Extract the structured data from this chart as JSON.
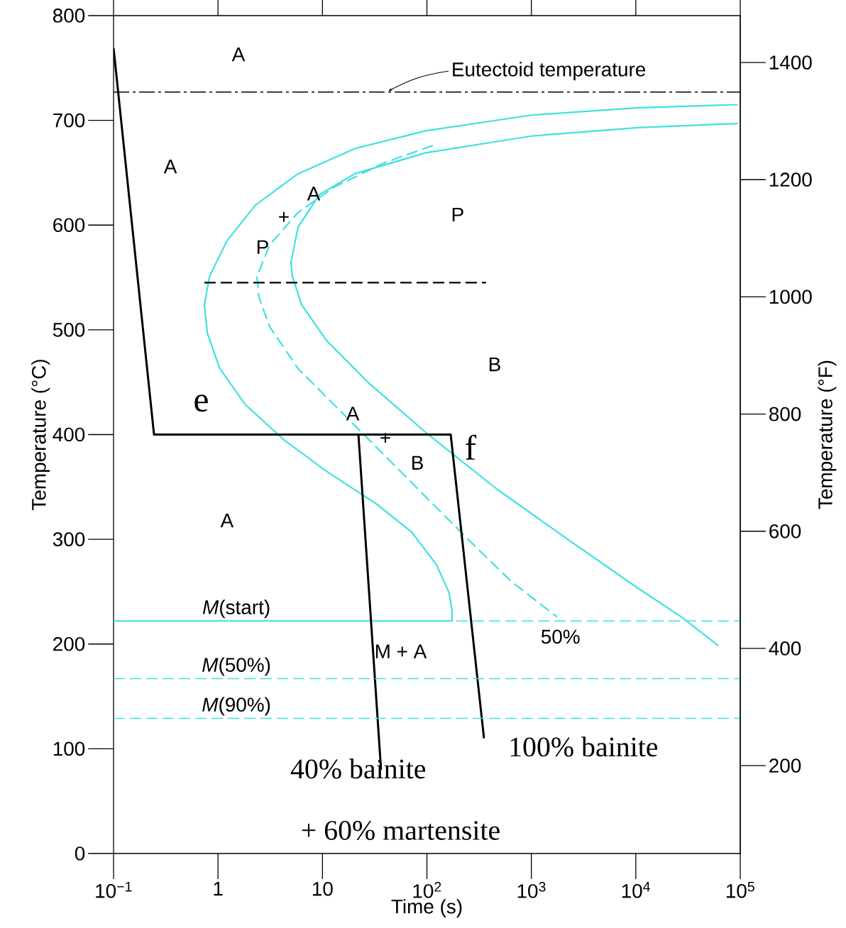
{
  "chart_data": {
    "type": "line",
    "xlabel": "Time (s)",
    "ylabel": "Temperature (°C)",
    "y2label": "Temperature (°F)",
    "log": "x",
    "xlim": [
      0.1,
      100000
    ],
    "xticks": [
      {
        "value": 0.1,
        "label": "10$^{−1}$"
      },
      1,
      10,
      {
        "value": 100,
        "label": "10$^{2}$"
      },
      {
        "value": 1000,
        "label": "10$^{3}$"
      },
      {
        "value": 10000,
        "label": "10$^{4}$"
      },
      {
        "value": 100000,
        "label": "10$^{5}$"
      }
    ],
    "ylim": [
      0,
      800
    ],
    "yticks": [
      0,
      100,
      200,
      300,
      400,
      500,
      600,
      700,
      800
    ],
    "y2lim": [
      50,
      1480
    ],
    "y2ticks": [
      200,
      400,
      600,
      800,
      1000,
      1200,
      1400
    ],
    "series": [
      {
        "color": "#40e0e0",
        "line_style": "solid",
        "x": [
          95000,
          10600,
          1000,
          97.5,
          20.4,
          5.84,
          2.28,
          1.22,
          0.83,
          0.74,
          0.79,
          1.04,
          1.81,
          4.27,
          10.9,
          32.6,
          71.3,
          123,
          163,
          174,
          174,
          0.1
        ],
        "values": [
          715,
          712,
          705,
          690,
          673,
          649,
          619,
          585,
          551,
          524,
          497,
          463,
          429,
          395,
          365,
          334,
          307,
          276,
          249,
          232,
          222,
          222
        ]
      },
      {
        "color": "#40e0e0",
        "line_style": "solid",
        "x": [
          95000,
          10600,
          1000,
          97.5,
          20.4,
          9.33,
          5.84,
          4.99,
          5.15,
          6.31,
          10.9,
          27.9,
          97.5,
          466,
          2228,
          10600,
          27200,
          50900
        ],
        "values": [
          697,
          693,
          685,
          669,
          649,
          629,
          598,
          564,
          551,
          524,
          490,
          449,
          402,
          348,
          300,
          253,
          226,
          205
        ]
      },
      {
        "color": "#40e0e0",
        "line_style": "dashed",
        "x": [
          50900,
          64300
        ],
        "values": [
          205,
          197
        ]
      },
      {
        "color": "#40e0e0",
        "line_style": "dashed",
        "x": [
          114,
          38.2,
          12.8,
          5.84,
          3.12,
          2.36,
          2.47,
          3.12,
          5.84,
          12.8,
          27.9,
          61,
          133,
          292,
          637,
          1191,
          1762
        ],
        "values": [
          676,
          659,
          636,
          612,
          581,
          551,
          531,
          503,
          463,
          429,
          395,
          361,
          327,
          293,
          260,
          239,
          226
        ]
      },
      {
        "color": "#000000",
        "line_style": "dashed",
        "x": [
          0.74,
          368
        ],
        "values": [
          545,
          545
        ]
      },
      {
        "color": "#000000",
        "line_style": "solid",
        "x": [
          0.1,
          0.244,
          169,
          352
        ],
        "values": [
          769,
          400,
          400,
          110
        ]
      },
      {
        "color": "#000000",
        "line_style": "solid",
        "x": [
          22.1,
          36.4
        ],
        "values": [
          400,
          80
        ]
      }
    ],
    "ref_lines": [
      {
        "axis": "y",
        "value": 727,
        "label": "Eutectoid temperature",
        "color": "#000000",
        "line_style": "dashdot"
      },
      {
        "axis": "y",
        "value": 222,
        "label": "*M*(start)",
        "color": "#40e0e0",
        "line_style": "dashed"
      },
      {
        "axis": "y",
        "value": 167,
        "label": "*M*(50%)",
        "color": "#40e0e0",
        "line_style": "dashed"
      },
      {
        "axis": "y",
        "value": 129,
        "label": "*M*(90%)",
        "color": "#40e0e0",
        "line_style": "dashed"
      }
    ],
    "annotations": [
      "A",
      "A",
      "A",
      "+",
      "P",
      "P",
      "B",
      "A",
      "+",
      "B",
      "A",
      "50%",
      "M + A",
      "e",
      "f",
      "40% bainite",
      "+ 60% martensite",
      "100% bainite"
    ]
  }
}
